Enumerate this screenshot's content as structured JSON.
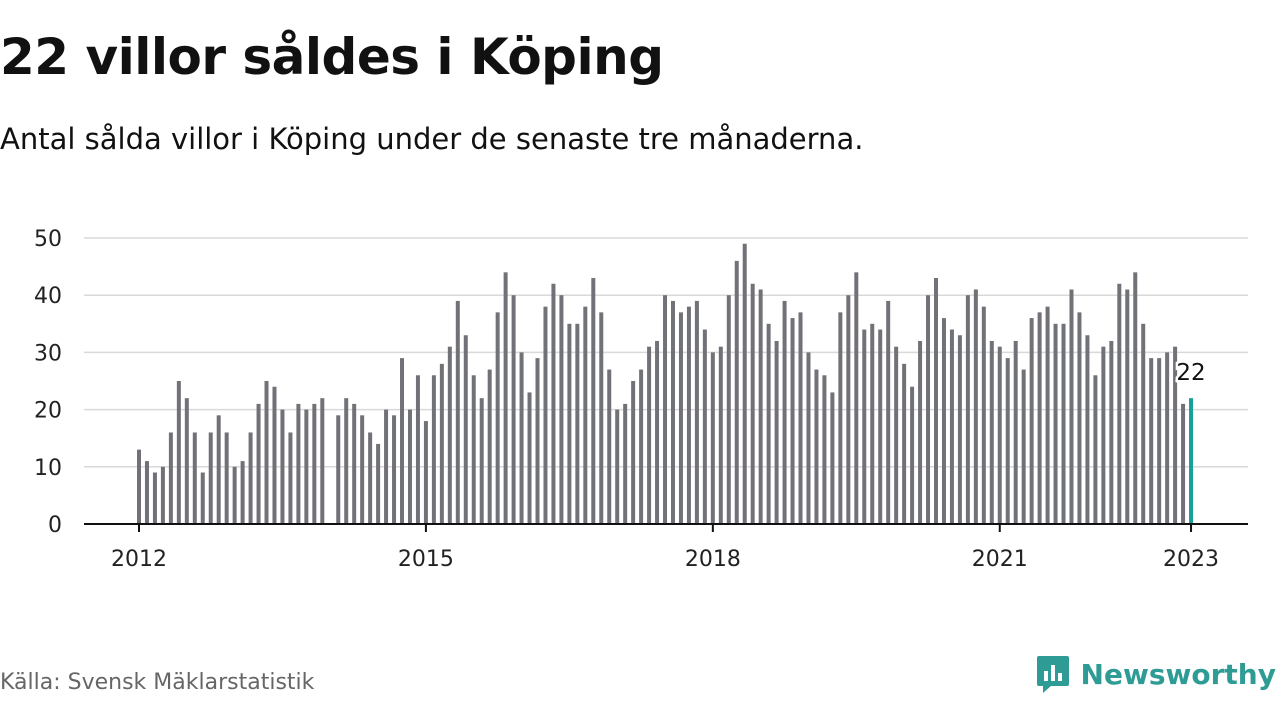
{
  "title": "22 villor såldes i Köping",
  "subtitle": "Antal sålda villor i Köping under de senaste tre månaderna.",
  "source": "Källa: Svensk Mäklarstatistik",
  "brand": {
    "name": "Newsworthy",
    "icon": "newsworthy-logo-icon",
    "color": "#2e9c94"
  },
  "chart_data": {
    "type": "bar",
    "unit": "monthly count",
    "x_start": "2012-01",
    "values": [
      13,
      11,
      9,
      10,
      16,
      25,
      22,
      16,
      9,
      16,
      19,
      16,
      10,
      11,
      16,
      21,
      25,
      24,
      20,
      16,
      21,
      20,
      21,
      22,
      null,
      19,
      22,
      21,
      19,
      16,
      14,
      20,
      19,
      29,
      20,
      26,
      18,
      26,
      28,
      31,
      39,
      33,
      26,
      22,
      27,
      37,
      44,
      40,
      30,
      23,
      29,
      38,
      42,
      40,
      35,
      35,
      38,
      43,
      37,
      27,
      20,
      21,
      25,
      27,
      31,
      32,
      40,
      39,
      37,
      38,
      39,
      34,
      30,
      31,
      40,
      46,
      49,
      42,
      41,
      35,
      32,
      39,
      36,
      37,
      30,
      27,
      26,
      23,
      37,
      40,
      44,
      34,
      35,
      34,
      39,
      31,
      28,
      24,
      32,
      40,
      43,
      36,
      34,
      33,
      40,
      41,
      38,
      32,
      31,
      29,
      32,
      27,
      36,
      37,
      38,
      35,
      35,
      41,
      37,
      33,
      26,
      31,
      32,
      42,
      41,
      44,
      35,
      29,
      29,
      30,
      31,
      21,
      22
    ],
    "highlight": {
      "date": "2023-01",
      "value": 22,
      "label": "22",
      "color": "#1a9e9a"
    },
    "bar_color": "#717178",
    "x_ticks": [
      "2012",
      "2015",
      "2018",
      "2021",
      "2023"
    ],
    "y_ticks": [
      "0",
      "10",
      "20",
      "30",
      "40",
      "50"
    ],
    "ylim": [
      0,
      50
    ],
    "grid": true,
    "xlabel": "",
    "ylabel": ""
  }
}
